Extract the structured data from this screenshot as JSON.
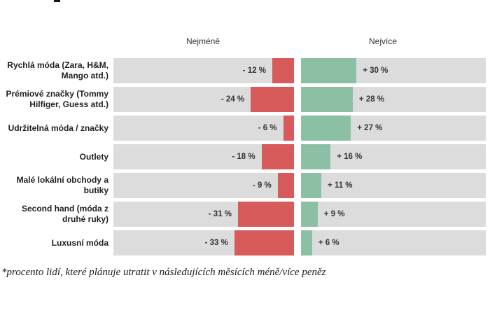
{
  "headers": {
    "least": "Nejméně",
    "most": "Nejvíce"
  },
  "rows": [
    {
      "label": "Rychlá móda (Zara, H&M,\nMango atd.)",
      "neg": 12,
      "pos": 30,
      "neg_label": "- 12 %",
      "pos_label": "+ 30 %"
    },
    {
      "label": "Prémiové značky (Tommy\nHilfiger, Guess atd.)",
      "neg": 24,
      "pos": 28,
      "neg_label": "- 24 %",
      "pos_label": "+ 28 %"
    },
    {
      "label": "Udržitelná móda / značky",
      "neg": 6,
      "pos": 27,
      "neg_label": "- 6 %",
      "pos_label": "+ 27 %"
    },
    {
      "label": "Outlety",
      "neg": 18,
      "pos": 16,
      "neg_label": "- 18 %",
      "pos_label": "+ 16 %"
    },
    {
      "label": "Malé lokální obchody a\nbutiky",
      "neg": 9,
      "pos": 11,
      "neg_label": "- 9 %",
      "pos_label": "+ 11 %"
    },
    {
      "label": "Second hand (móda z\ndruhé ruky)",
      "neg": 31,
      "pos": 9,
      "neg_label": "- 31 %",
      "pos_label": "+ 9 %"
    },
    {
      "label": "Luxusní móda",
      "neg": 33,
      "pos": 6,
      "neg_label": "- 33 %",
      "pos_label": "+ 6 %"
    }
  ],
  "footnote": "*procento lidí, které plánuje utratit v následujících měsících méně/více peněz",
  "colors": {
    "negative": "#d85b5b",
    "positive": "#8cc0a4",
    "track": "#dcdcdc"
  },
  "chart_data": {
    "type": "bar",
    "orientation": "horizontal-diverging",
    "categories": [
      "Rychlá móda (Zara, H&M, Mango atd.)",
      "Prémiové značky (Tommy Hilfiger, Guess atd.)",
      "Udržitelná móda / značky",
      "Outlety",
      "Malé lokální obchody a butiky",
      "Second hand (móda z druhé ruky)",
      "Luxusní móda"
    ],
    "series": [
      {
        "name": "Nejméně",
        "values": [
          -12,
          -24,
          -6,
          -18,
          -9,
          -31,
          -33
        ],
        "color": "#d85b5b"
      },
      {
        "name": "Nejvíce",
        "values": [
          30,
          28,
          27,
          16,
          11,
          9,
          6
        ],
        "color": "#8cc0a4"
      }
    ],
    "value_suffix": " %",
    "axis_range_percent": [
      0,
      100
    ],
    "grid": false,
    "legend_position": "column-headers-top",
    "note": "*procento lidí, které plánuje utratit v následujících měsících méně/více peněz"
  }
}
